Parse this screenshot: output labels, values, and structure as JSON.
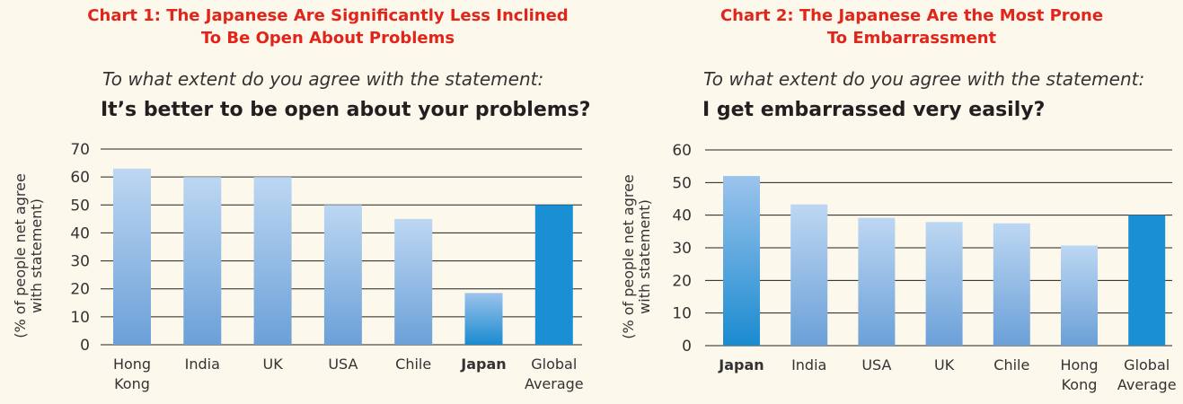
{
  "colors": {
    "title": "#e1251b",
    "bar_light_top": "#bcd6f1",
    "bar_light_bottom": "#6fa3da",
    "highlight": "#1a8fd3",
    "grid": "#231f20"
  },
  "chart_data": [
    {
      "type": "bar",
      "title": "Chart 1: The Japanese Are Significantly Less Inclined To Be Open About Problems",
      "title_lines": [
        "Chart 1: The Japanese Are Significantly Less Inclined",
        "To Be Open About Problems"
      ],
      "question": "To what extent do you agree with the statement:",
      "statement": "It’s better to be open about your problems?",
      "ylabel_lines": [
        "(% of people net agree",
        "with statement)"
      ],
      "categories": [
        [
          "Hong",
          "Kong"
        ],
        [
          "India"
        ],
        [
          "UK"
        ],
        [
          "USA"
        ],
        [
          "Chile"
        ],
        [
          "Japan"
        ],
        [
          "Global",
          "Average"
        ]
      ],
      "values": [
        63,
        60,
        60,
        50,
        45,
        18.5,
        50
      ],
      "highlight": [
        false,
        false,
        false,
        false,
        false,
        true,
        true
      ],
      "bold_label": [
        false,
        false,
        false,
        false,
        false,
        true,
        false
      ],
      "ylim": [
        0,
        70
      ],
      "yticks": [
        0,
        10,
        20,
        30,
        40,
        50,
        60,
        70
      ],
      "grid": true
    },
    {
      "type": "bar",
      "title": "Chart 2: The Japanese Are the Most Prone To Embarrassment",
      "title_lines": [
        "Chart 2: The Japanese Are the Most Prone",
        "To Embarrassment"
      ],
      "question": "To what extent do you agree with the statement:",
      "statement": "I get embarrassed very easily?",
      "ylabel_lines": [
        "(% of people net agree",
        "with statement)"
      ],
      "categories": [
        [
          "Japan"
        ],
        [
          "India"
        ],
        [
          "USA"
        ],
        [
          "UK"
        ],
        [
          "Chile"
        ],
        [
          "Hong",
          "Kong"
        ],
        [
          "Global",
          "Average"
        ]
      ],
      "values": [
        52,
        43.3,
        39.2,
        37.9,
        37.5,
        30.7,
        40
      ],
      "highlight": [
        true,
        false,
        false,
        false,
        false,
        false,
        true
      ],
      "bold_label": [
        true,
        false,
        false,
        false,
        false,
        false,
        false
      ],
      "ylim": [
        0,
        60
      ],
      "yticks": [
        0,
        10,
        20,
        30,
        40,
        50,
        60
      ],
      "grid": true
    }
  ]
}
